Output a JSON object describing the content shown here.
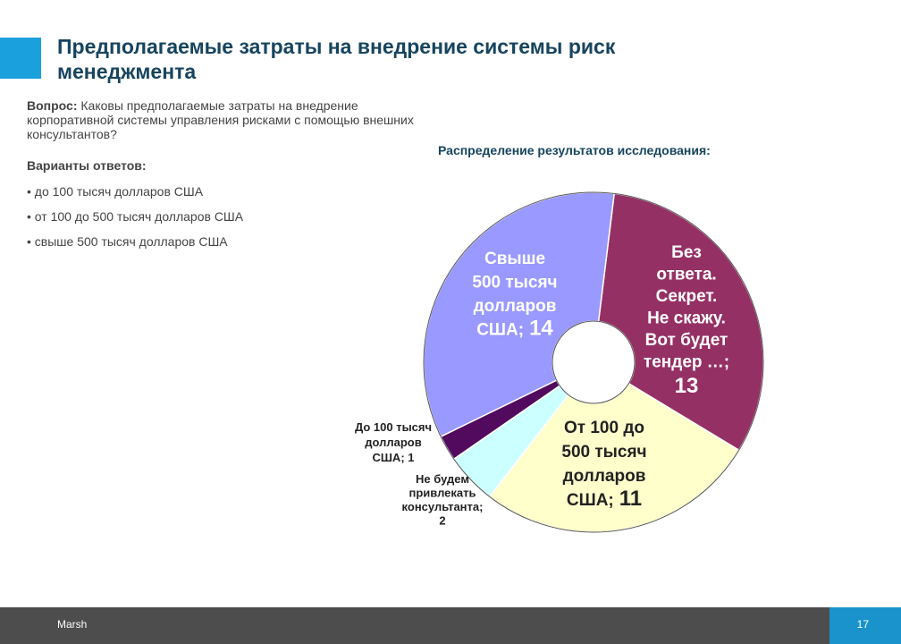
{
  "slide": {
    "title_line1": "Предполагаемые затраты на внедрение системы риск",
    "title_line2": "менеджмента",
    "question_label": "Вопрос:",
    "question_text": " Каковы предполагаемые затраты на внедрение корпоративной системы управления рисками с помощью внешних консультантов?",
    "answers_label": "Варианты ответов:",
    "answers": [
      "• до 100 тысяч долларов США",
      "• от 100 до 500 тысяч долларов США",
      "• свыше 500 тысяч долларов США"
    ],
    "chart_title": "Распределение результатов исследования:"
  },
  "chart_data": {
    "type": "pie",
    "style": "donut",
    "title": "Распределение результатов исследования:",
    "slices": [
      {
        "label_lines": [
          "Без",
          "ответа.",
          "Секрет.",
          "Не скажу.",
          "Вот будет",
          "тендер …;"
        ],
        "value": 13,
        "color": "#953065"
      },
      {
        "label_lines": [
          "От 100 до",
          "500 тысяч",
          "долларов",
          "США;"
        ],
        "value": 11,
        "color": "#ffffcc"
      },
      {
        "label_lines": [
          "Не будем",
          "привлекать",
          "консультанта;"
        ],
        "value": 2,
        "color": "#ccffff"
      },
      {
        "label_lines": [
          "До 100 тысяч",
          "долларов",
          "США; 1"
        ],
        "value": 1,
        "color": "#520a5e"
      },
      {
        "label_lines": [
          "Свыше",
          "500 тысяч",
          "долларов",
          "США;"
        ],
        "value": 14,
        "color": "#9999ff"
      }
    ]
  },
  "footer": {
    "company": "Marsh",
    "page": "17"
  }
}
